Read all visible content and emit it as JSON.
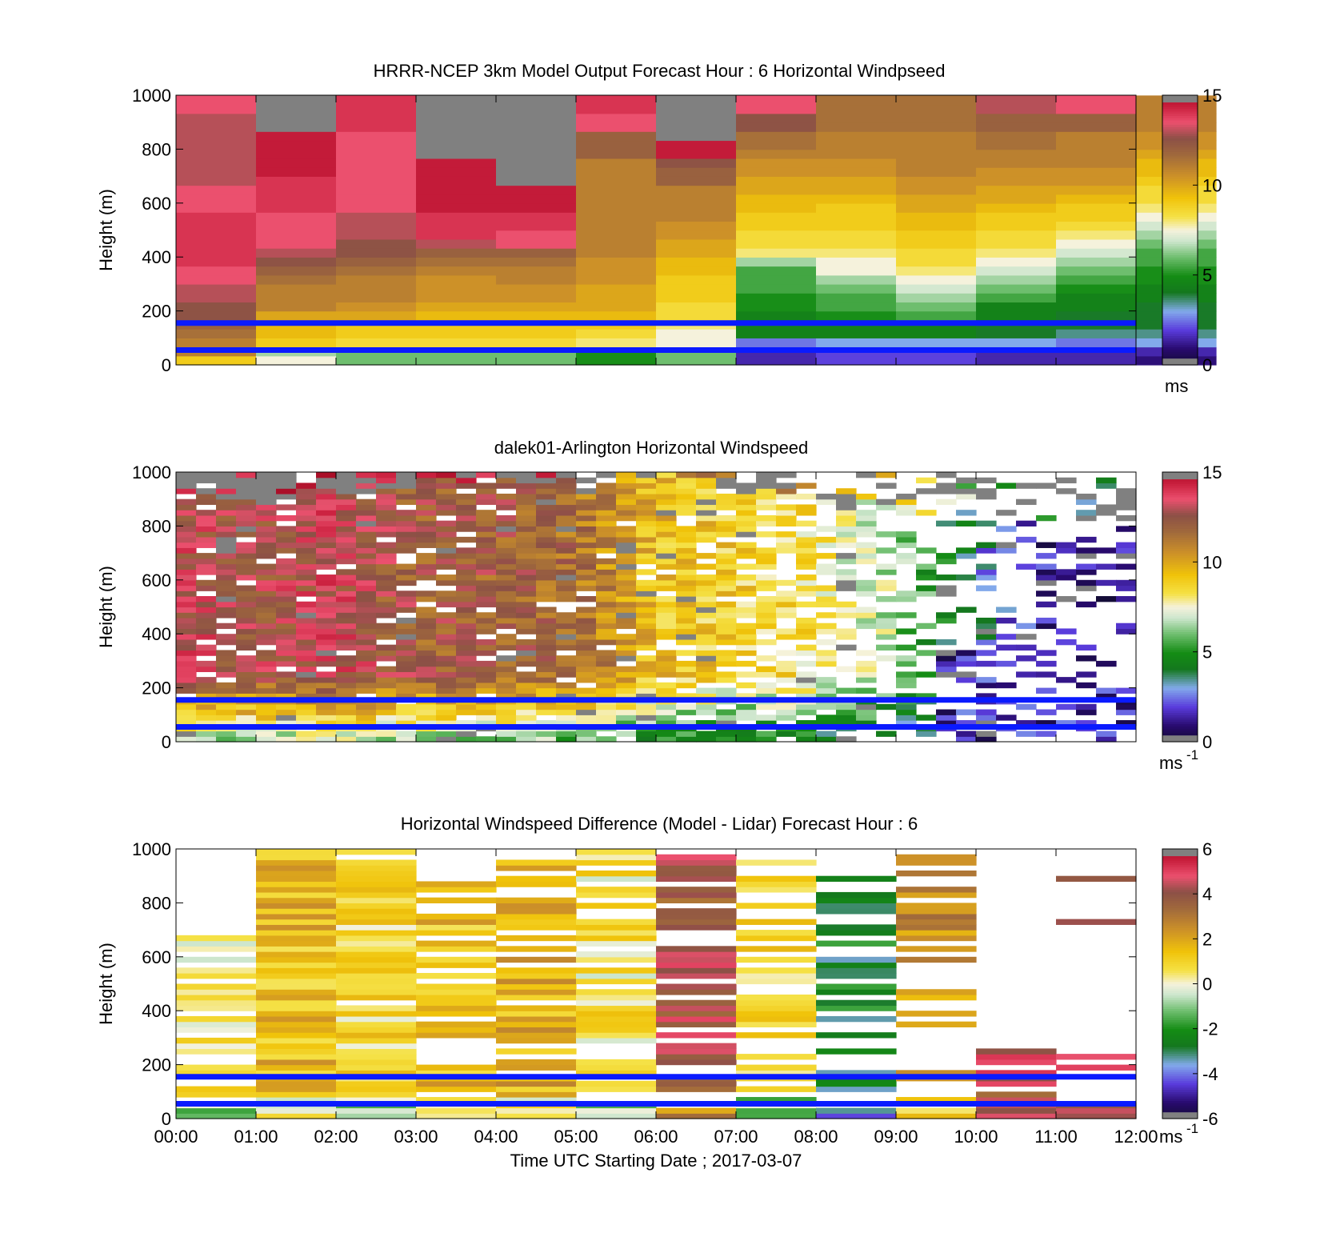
{
  "chart_data": [
    {
      "type": "heatmap",
      "title": "HRRR-NCEP 3km Model Output   Forecast Hour : 6 Horizontal Windpseed",
      "xlabel": "",
      "ylabel": "Height (m)",
      "ylim": [
        0,
        1000
      ],
      "yticks": [
        "0",
        "200",
        "400",
        "600",
        "800",
        "1000"
      ],
      "xticks": [],
      "x_hours": [
        0,
        12
      ],
      "time_step_hours": 1,
      "height_step_m": 33.3,
      "colorbar": {
        "min": 0,
        "max": 15,
        "ticks": [
          "0",
          "5",
          "10",
          "15"
        ],
        "unit_label": "ms",
        "unit_exponent": ""
      },
      "reference_lines_m": [
        55,
        155
      ],
      "values": [
        [
          9,
          11,
          11,
          11.5,
          12,
          12.5,
          12.5,
          13,
          13,
          13.5,
          13.5,
          14,
          14,
          14,
          14,
          14,
          14,
          13.5,
          13.5,
          13.5,
          13,
          13,
          13,
          13,
          13,
          13,
          13,
          13,
          13.5,
          13.5
        ],
        [
          7.5,
          6.5,
          9,
          9.5,
          9.5,
          10,
          11,
          11,
          11,
          11.5,
          12,
          12.5,
          13,
          13.5,
          13.5,
          13.5,
          13.5,
          14,
          14,
          14,
          14,
          14.5,
          14.5,
          14.5,
          14.5,
          14.5,
          15.1,
          15.1,
          15.1,
          15.1
        ],
        [
          6,
          6,
          8.5,
          9,
          9,
          10,
          10.5,
          11,
          11,
          11,
          11.5,
          12,
          12.5,
          12.5,
          13,
          13,
          13,
          13.5,
          13.5,
          13.5,
          13.5,
          13.5,
          13.5,
          13.5,
          13.5,
          13.5,
          14,
          14,
          14,
          14
        ],
        [
          6,
          6,
          8.5,
          9,
          9,
          9.5,
          10,
          10.5,
          10.5,
          10.5,
          11,
          11.5,
          12,
          13,
          14,
          14,
          14,
          14.5,
          14.5,
          14.5,
          14.5,
          14.5,
          14.5,
          15.1,
          15.1,
          15.1,
          15.1,
          15.1,
          15.1,
          15.1
        ],
        [
          6,
          6,
          8.5,
          9,
          9,
          9.5,
          10,
          10.5,
          10.5,
          11,
          11,
          11.5,
          12,
          13.5,
          13.5,
          14,
          14,
          14.5,
          14.5,
          14.5,
          15.1,
          15.1,
          15.1,
          15.1,
          15.1,
          15.1,
          15.1,
          15.1,
          15.1,
          15.1
        ],
        [
          5,
          5,
          8,
          8.5,
          9,
          9.5,
          10,
          10,
          10,
          10.5,
          10.5,
          10.5,
          11,
          11,
          11,
          11,
          11,
          11,
          11,
          11,
          11,
          11,
          11,
          12,
          12,
          12,
          13.5,
          13.5,
          14,
          14
        ],
        [
          6,
          6,
          7.5,
          7.5,
          8,
          8.5,
          8.5,
          9,
          9,
          9,
          9.5,
          9.5,
          10,
          10,
          10.5,
          10.5,
          11,
          11,
          11,
          11,
          12,
          12,
          12.5,
          14.5,
          14.5,
          15.1,
          15.1,
          15.1,
          15.1,
          15.1
        ],
        [
          1.5,
          1.5,
          2.5,
          4.5,
          4.5,
          4.5,
          5,
          5,
          5.5,
          5.5,
          5.5,
          6.5,
          8,
          8.5,
          8.5,
          9,
          9,
          9.5,
          9.5,
          10,
          10,
          10.5,
          10.5,
          11,
          11.5,
          11.5,
          12.5,
          12.5,
          13.5,
          13.5
        ],
        [
          2,
          2,
          3,
          4.5,
          4.5,
          5,
          5.5,
          5.5,
          6,
          6.5,
          7.5,
          7.5,
          8,
          8.5,
          8.5,
          9,
          9,
          9,
          9.5,
          10,
          10,
          10.5,
          10.5,
          11,
          11,
          11,
          11.5,
          11.5,
          11.5,
          11.5
        ],
        [
          2,
          2,
          3,
          4.5,
          4.5,
          5.5,
          6,
          6.5,
          7,
          7.5,
          8,
          8.5,
          8.5,
          9,
          9,
          9.5,
          9.5,
          10,
          10,
          10.5,
          10.5,
          11,
          11,
          11,
          11,
          11,
          11.5,
          11.5,
          11.5,
          11.5
        ],
        [
          1.5,
          1.5,
          3,
          4,
          4,
          4.5,
          4.5,
          5.5,
          6,
          6.5,
          7,
          7.5,
          8,
          8.5,
          8.5,
          9,
          9,
          9.5,
          10,
          10,
          10.5,
          10.5,
          11,
          11,
          11.5,
          11.5,
          12,
          12,
          13,
          13
        ],
        [
          1.5,
          1.5,
          2.5,
          3.5,
          4,
          4,
          4.5,
          4.5,
          5,
          5.5,
          6,
          6.5,
          7,
          7.5,
          8,
          8.5,
          9,
          9,
          9.5,
          10,
          10.5,
          10.5,
          11,
          11,
          11,
          11,
          12,
          12,
          13.5,
          13.5
        ],
        [
          1,
          1.5,
          3,
          3.5,
          4,
          4,
          4,
          4.5,
          4.5,
          5,
          5,
          5.5,
          5.5,
          6,
          6.5,
          7,
          7.5,
          8,
          8.5,
          8.5,
          9,
          9.5,
          9.5,
          10,
          10.5,
          10.5,
          11,
          11,
          11,
          11
        ]
      ]
    },
    {
      "type": "heatmap",
      "title": "dalek01-Arlington  Horizontal Windspeed",
      "xlabel": "",
      "ylabel": "Height (m)",
      "ylim": [
        0,
        1000
      ],
      "yticks": [
        "0",
        "200",
        "400",
        "600",
        "800",
        "1000"
      ],
      "xticks": [],
      "x_hours": [
        0,
        12
      ],
      "time_step_hours": 0.25,
      "height_step_m": 20,
      "colorbar": {
        "min": 0,
        "max": 15,
        "ticks": [
          "0",
          "5",
          "10",
          "15"
        ],
        "unit_label": "ms",
        "unit_exponent": "-1"
      },
      "reference_lines_m": [
        55,
        155
      ],
      "profile_hours": [
        0,
        1,
        2,
        3,
        4,
        5,
        6,
        7,
        8,
        9,
        10,
        11,
        12
      ],
      "profile_speed": [
        12,
        11.5,
        12,
        11,
        11,
        10.5,
        8.5,
        8,
        7.5,
        6,
        3,
        1,
        1
      ],
      "clip_height_hours": [
        0,
        1,
        2,
        3,
        4,
        5,
        6,
        7,
        8,
        9,
        10,
        11,
        12
      ],
      "clip_height_m": [
        980,
        900,
        920,
        950,
        980,
        970,
        980,
        950,
        900,
        870,
        880,
        800,
        850
      ],
      "gap_fraction_hours": [
        0,
        6,
        7.5,
        8.5,
        9.5,
        12
      ],
      "gap_fraction": [
        0.06,
        0.1,
        0.3,
        0.45,
        0.6,
        0.65
      ]
    },
    {
      "type": "heatmap",
      "title": "Horizontal Windspeed Difference (Model - Lidar) Forecast Hour : 6",
      "xlabel": "Time UTC  Starting Date ; 2017-03-07",
      "ylabel": "Height (m)",
      "ylim": [
        0,
        1000
      ],
      "yticks": [
        "0",
        "200",
        "400",
        "600",
        "800",
        "1000"
      ],
      "xticks": [
        "00:00",
        "01:00",
        "02:00",
        "03:00",
        "04:00",
        "05:00",
        "06:00",
        "07:00",
        "08:00",
        "09:00",
        "10:00",
        "11:00",
        "12:00"
      ],
      "x_hours": [
        0,
        12
      ],
      "time_step_hours": 1,
      "height_step_m": 20,
      "colorbar": {
        "min": -6,
        "max": 6,
        "ticks": [
          "-6",
          "-4",
          "-2",
          "0",
          "2",
          "4",
          "6"
        ],
        "unit_label": "ms",
        "unit_exponent": "-1"
      },
      "reference_lines_m": [
        55,
        155
      ],
      "column_base": [
        0.5,
        1.5,
        0.8,
        1.5,
        1.8,
        0.5,
        4,
        0.8,
        -2.5,
        2.5,
        4.2,
        4.2
      ],
      "column_top_m": [
        720,
        1000,
        1000,
        880,
        960,
        990,
        1000,
        1000,
        940,
        1000,
        280,
        1000
      ],
      "column_gap_fraction": [
        0.35,
        0.05,
        0.05,
        0.3,
        0.25,
        0.25,
        0.35,
        0.45,
        0.45,
        0.55,
        0.2,
        0.9
      ]
    }
  ]
}
